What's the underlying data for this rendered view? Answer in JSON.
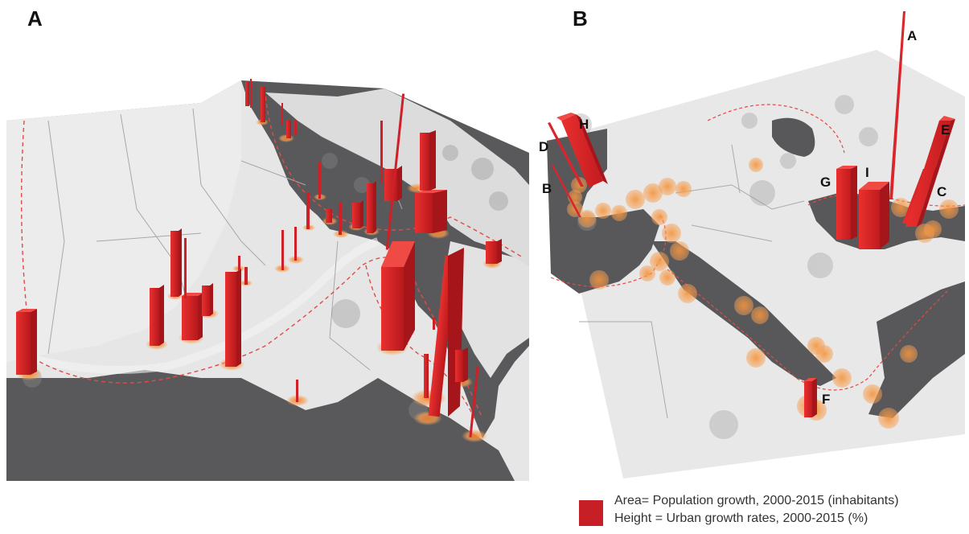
{
  "panels": [
    {
      "id": "A",
      "label": "A"
    },
    {
      "id": "B",
      "label": "B",
      "cities": [
        "A",
        "B",
        "C",
        "D",
        "E",
        "F",
        "G",
        "H",
        "I"
      ]
    }
  ],
  "legend": {
    "area_label": "Area= Population growth, 2000-2015 (inhabitants)",
    "height_label": "Height = Urban growth rates, 2000-2015 (%)",
    "bar_color": "#c62026"
  },
  "colors": {
    "sea": "#5a5a5c",
    "land": "#e7e7e7",
    "bar": "#d9262b",
    "halo": "#f59a45",
    "boundary": "#e0504e"
  }
}
